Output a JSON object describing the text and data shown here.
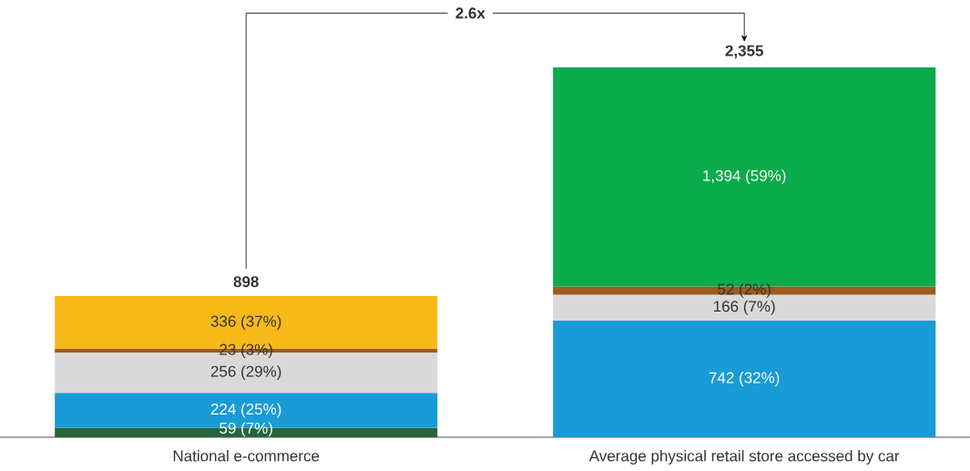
{
  "chart_data": {
    "type": "bar",
    "stacked": true,
    "categories": [
      "National e-commerce",
      "Average physical retail store accessed by car"
    ],
    "series": [
      {
        "color": "#27643a",
        "values": [
          59,
          null
        ],
        "value_labels": [
          "59 (7%)",
          null
        ]
      },
      {
        "color": "#189bd6",
        "values": [
          224,
          742
        ],
        "value_labels": [
          "224 (25%)",
          "742 (32%)"
        ]
      },
      {
        "color": "#d9d9d9",
        "values": [
          256,
          166
        ],
        "value_labels": [
          "256 (29%)",
          "166 (7%)"
        ]
      },
      {
        "color": "#9a5c1f",
        "values": [
          23,
          52
        ],
        "value_labels": [
          "23 (3%)",
          "52 (2%)"
        ]
      },
      {
        "color": "#f7b918",
        "values": [
          336,
          null
        ],
        "value_labels": [
          "336 (37%)",
          null
        ]
      },
      {
        "color": "#0aab4a",
        "values": [
          null,
          1394
        ],
        "value_labels": [
          null,
          "1,394 (59%)"
        ]
      }
    ],
    "totals": [
      "898",
      "2,355"
    ],
    "annotations": [
      "2.6x"
    ]
  }
}
